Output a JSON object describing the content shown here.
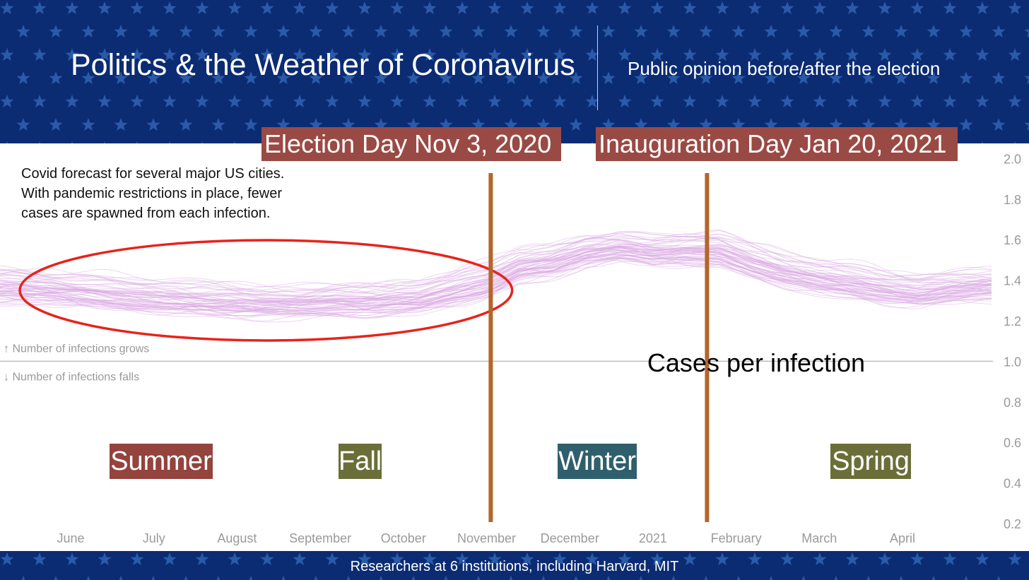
{
  "header": {
    "title": "Politics & the Weather of Coronavirus",
    "subtitle": "Public opinion before/after the election"
  },
  "events": {
    "election": "Election Day Nov 3, 2020",
    "inauguration": "Inauguration Day Jan 20, 2021"
  },
  "description": "Covid forecast for several major US cities. With pandemic restrictions in place, fewer cases are spawned from each infection.",
  "seasons": {
    "summer": "Summer",
    "fall": "Fall",
    "winter": "Winter",
    "spring": "Spring"
  },
  "footer": {
    "credit": "Researchers at 6 institutions, including Harvard, MIT"
  },
  "colors": {
    "banner": "#0b2c73",
    "star": "#2a5aa8",
    "line": "#d9a6e3",
    "ellipse": "#e8231b",
    "marker": "#b5652a"
  },
  "chart_data": {
    "type": "line",
    "title": "Cases per infection",
    "ylabel": "Cases per infection",
    "ylim": [
      0.2,
      2.0
    ],
    "yticks": [
      "2.0",
      "1.8",
      "1.6",
      "1.4",
      "1.2",
      "1.0",
      "0.8",
      "0.6",
      "0.4",
      "0.2"
    ],
    "xticks": [
      "June",
      "July",
      "August",
      "September",
      "October",
      "November",
      "December",
      "2021",
      "February",
      "March",
      "April"
    ],
    "reference_line": {
      "value": 1.0,
      "above_label": "↑ Number of infections grows",
      "below_label": "↓ Number of infections falls"
    },
    "markers": [
      {
        "date": "Nov 3, 2020",
        "month_index": 5.05
      },
      {
        "date": "Jan 20, 2021",
        "month_index": 7.65
      }
    ],
    "highlight": {
      "from_month": 0.0,
      "to_month": 4.5,
      "around_value": 1.35
    },
    "median_series": {
      "month_index": [
        -0.8,
        -0.3,
        0.2,
        0.7,
        1.2,
        1.7,
        2.2,
        2.7,
        3.2,
        3.7,
        4.2,
        4.6,
        5.0,
        5.4,
        5.8,
        6.2,
        6.6,
        7.0,
        7.4,
        7.8,
        8.2,
        8.6,
        9.0,
        9.4,
        9.8,
        10.2,
        10.6,
        11.0
      ],
      "values": [
        1.38,
        1.37,
        1.35,
        1.33,
        1.32,
        1.31,
        1.3,
        1.3,
        1.31,
        1.31,
        1.32,
        1.36,
        1.4,
        1.48,
        1.5,
        1.55,
        1.57,
        1.55,
        1.56,
        1.56,
        1.5,
        1.45,
        1.42,
        1.4,
        1.37,
        1.35,
        1.37,
        1.38
      ]
    },
    "spread": 0.08,
    "series_count": 60
  }
}
